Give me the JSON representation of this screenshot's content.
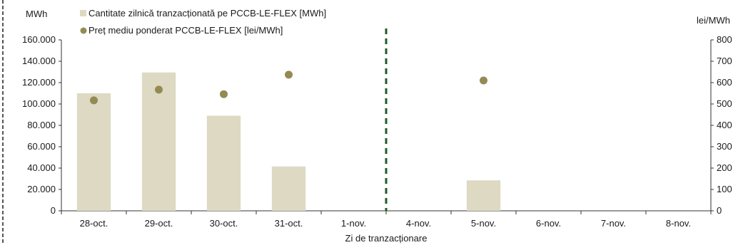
{
  "chart_data": {
    "type": "bar",
    "categories": [
      "28-oct.",
      "29-oct.",
      "30-oct.",
      "31-oct.",
      "1-nov.",
      "4-nov.",
      "5-nov.",
      "6-nov.",
      "7-nov.",
      "8-nov."
    ],
    "series": [
      {
        "name": "Cantitate zilnică tranzacționată pe PCCB-LE-FLEX [MWh]",
        "type": "bar",
        "axis": "left",
        "color": "#ddd9c3",
        "values": [
          110000,
          129500,
          89000,
          41500,
          0,
          0,
          28500,
          0,
          0,
          0
        ]
      },
      {
        "name": "Preț mediu ponderat PCCB-LE-FLEX [lei/MWh]",
        "type": "scatter",
        "axis": "right",
        "color": "#948a54",
        "values": [
          517,
          567,
          546,
          637,
          null,
          null,
          610,
          null,
          null,
          null
        ]
      }
    ],
    "xlabel": "Zi de tranzacționare",
    "ylabel_left": "MWh",
    "ylabel_right": "lei/MWh",
    "ylim_left": [
      0,
      160000
    ],
    "ylim_right": [
      0,
      800
    ],
    "yticks_left": [
      "0",
      "20.000",
      "40.000",
      "60.000",
      "80.000",
      "100.000",
      "120.000",
      "140.000",
      "160.000"
    ],
    "yticks_right": [
      "0",
      "100",
      "200",
      "300",
      "400",
      "500",
      "600",
      "700",
      "800"
    ],
    "separator_after_category": "1-nov.",
    "separator_color": "#1e5a28",
    "grid": false,
    "legend_position": "top-left"
  }
}
